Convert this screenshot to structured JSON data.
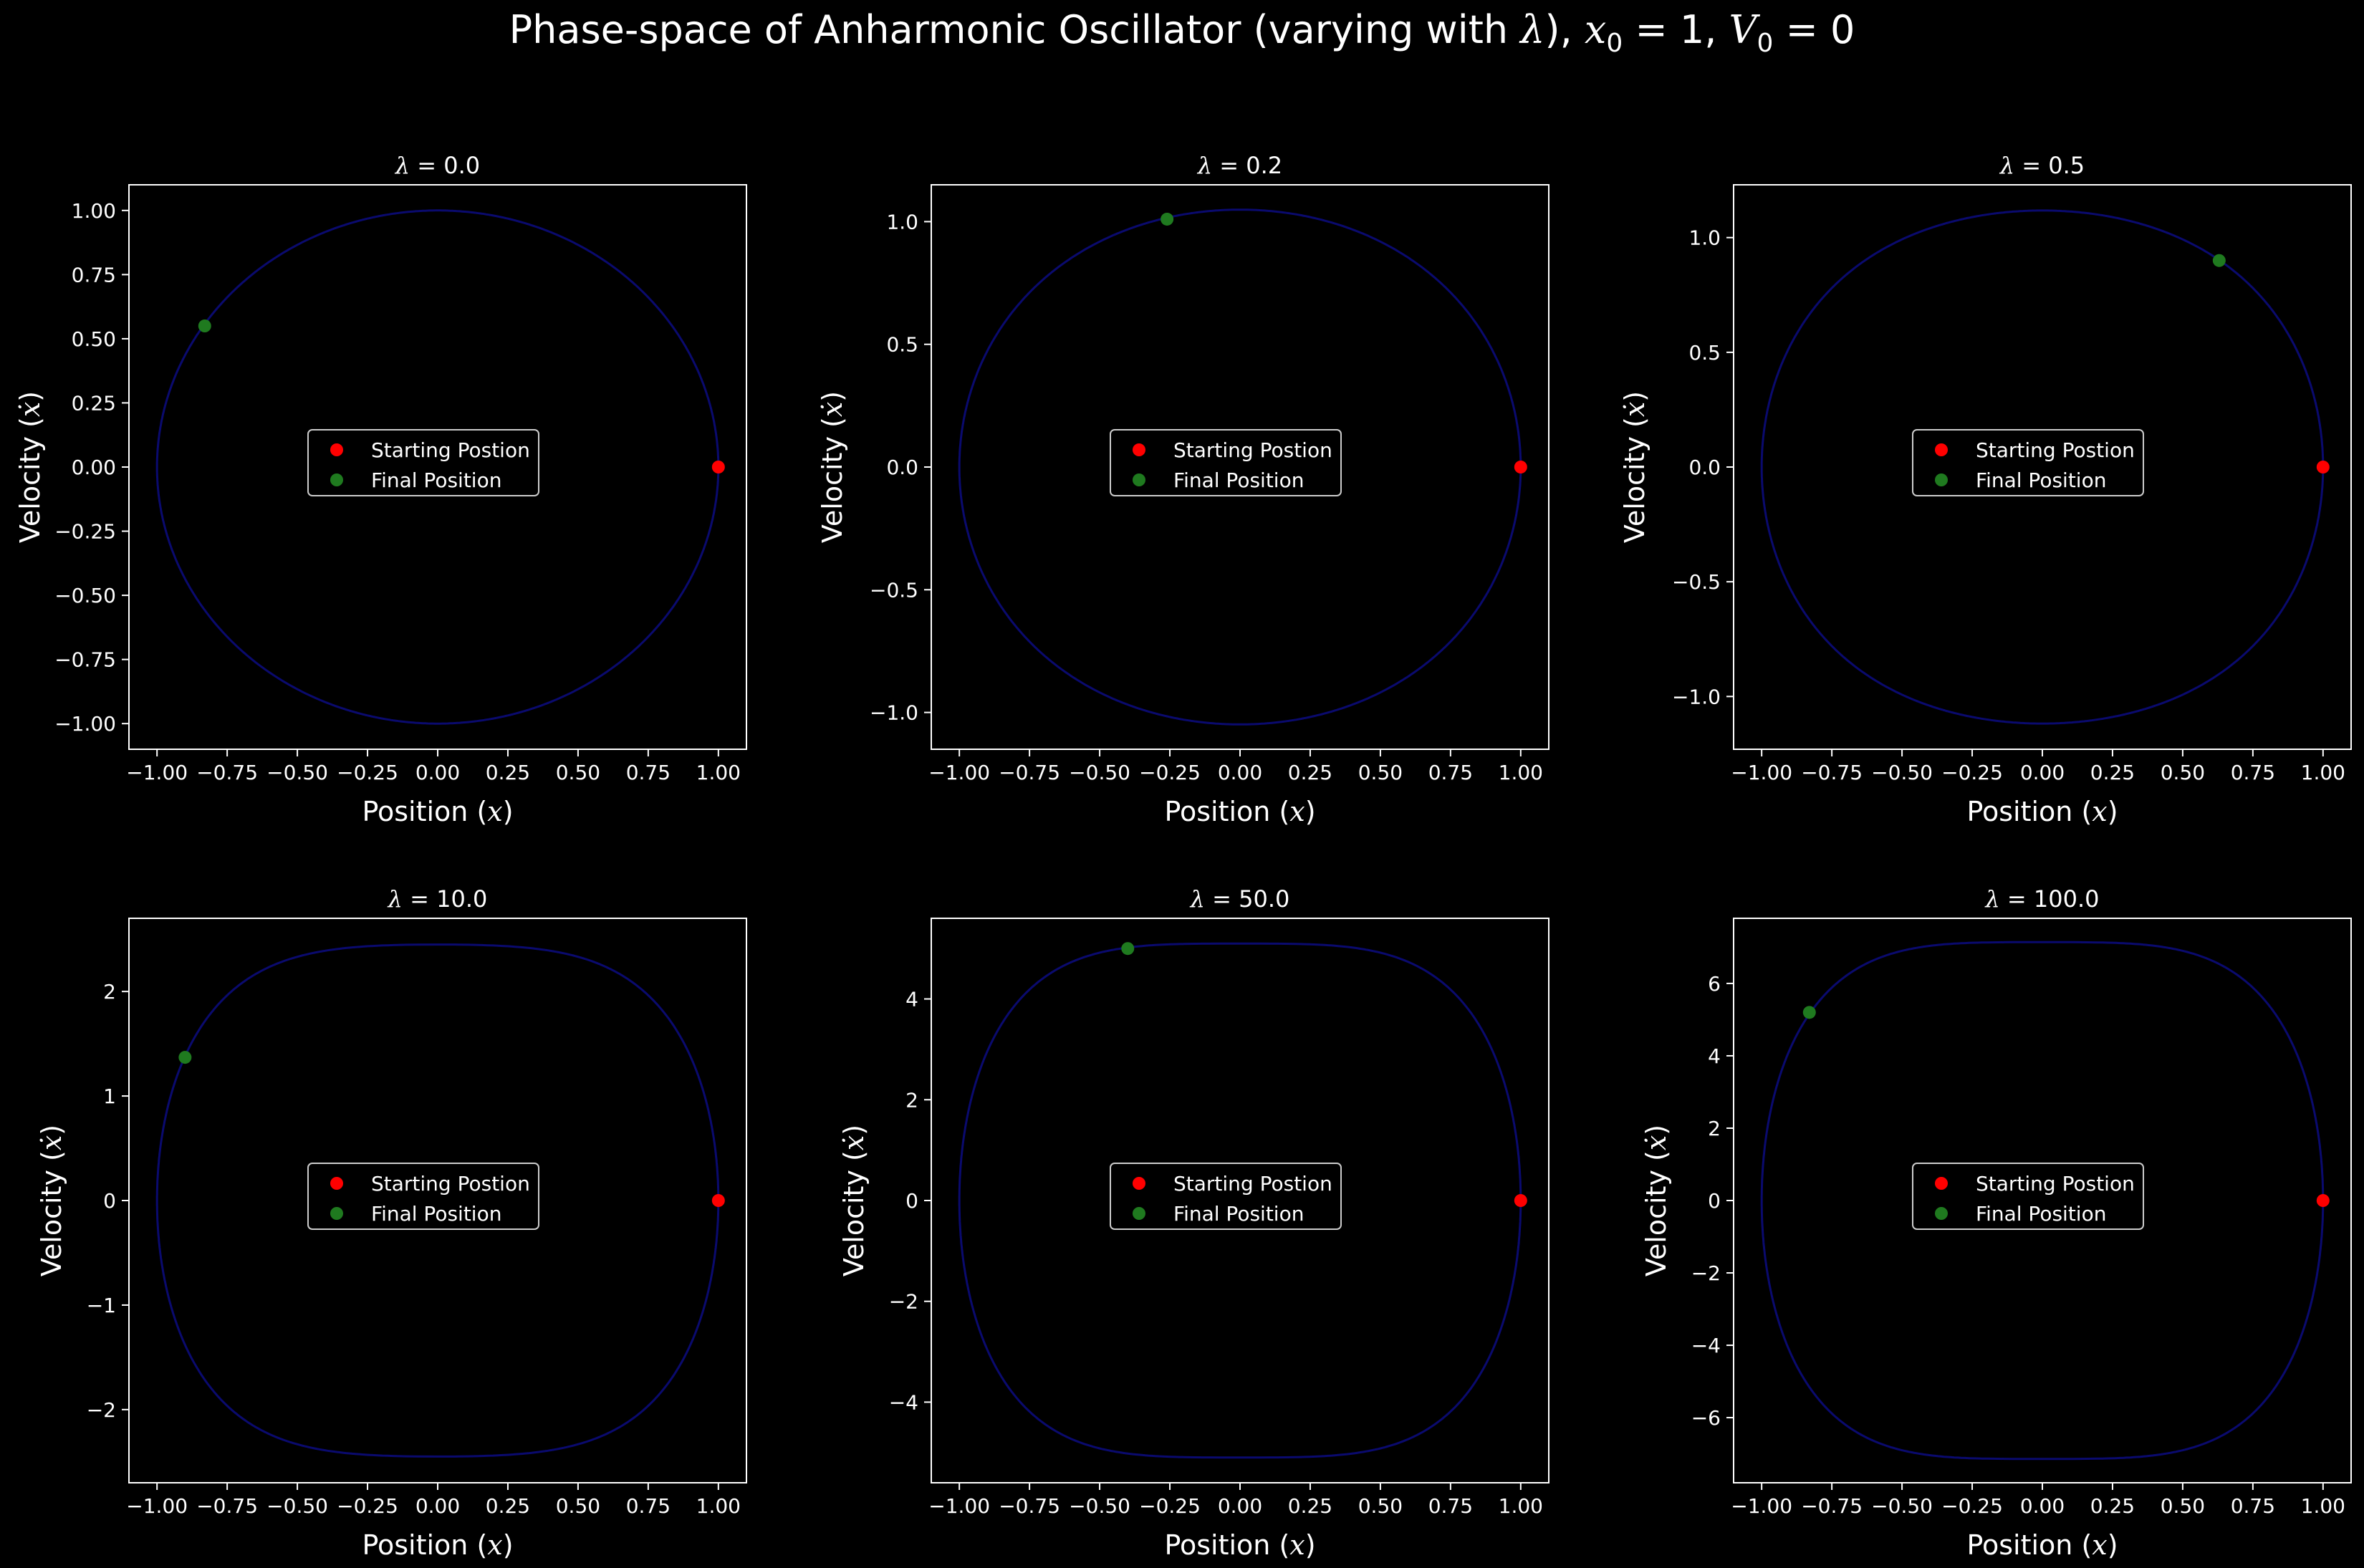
{
  "figure": {
    "title_prefix": "Phase-space of Anharmonic Oscillator (varying with ",
    "title_lambda": "λ",
    "title_mid": "), ",
    "title_x0_var": "x",
    "title_x0_sub": "0",
    "title_x0_val": " = 1,  ",
    "title_v0_var": "V",
    "title_v0_sub": "0",
    "title_v0_val": " = 0",
    "background_color": "#000000",
    "curve_color": "#0a0a6e",
    "start_color": "#ff0000",
    "final_color": "#1f7a1f"
  },
  "chart_data": [
    {
      "type": "line",
      "title": "λ = 0.0",
      "lambda": 0.0,
      "xlabel": "Position (x)",
      "ylabel": "Velocity (ẋ)",
      "xlim": [
        -1.1,
        1.1
      ],
      "ylim": [
        -1.1,
        1.1
      ],
      "xticks": [
        -1.0,
        -0.75,
        -0.5,
        -0.25,
        0.0,
        0.25,
        0.5,
        0.75,
        1.0
      ],
      "xtick_labels": [
        "−1.00",
        "−0.75",
        "−0.50",
        "−0.25",
        "0.00",
        "0.25",
        "0.50",
        "0.75",
        "1.00"
      ],
      "yticks": [
        -1.0,
        -0.75,
        -0.5,
        -0.25,
        0.0,
        0.25,
        0.5,
        0.75,
        1.0
      ],
      "ytick_labels": [
        "−1.00",
        "−0.75",
        "−0.50",
        "−0.25",
        "0.00",
        "0.25",
        "0.50",
        "0.75",
        "1.00"
      ],
      "start": [
        1.0,
        0.0
      ],
      "final": [
        -0.83,
        0.55
      ],
      "legend": [
        "Starting Postion",
        "Final Position"
      ],
      "legend_loc": "center",
      "grid": false
    },
    {
      "type": "line",
      "title": "λ = 0.2",
      "lambda": 0.2,
      "xlabel": "Position (x)",
      "ylabel": "Velocity (ẋ)",
      "xlim": [
        -1.1,
        1.1
      ],
      "ylim": [
        -1.15,
        1.15
      ],
      "xticks": [
        -1.0,
        -0.75,
        -0.5,
        -0.25,
        0.0,
        0.25,
        0.5,
        0.75,
        1.0
      ],
      "xtick_labels": [
        "−1.00",
        "−0.75",
        "−0.50",
        "−0.25",
        "0.00",
        "0.25",
        "0.50",
        "0.75",
        "1.00"
      ],
      "yticks": [
        -1.0,
        -0.5,
        0.0,
        0.5,
        1.0
      ],
      "ytick_labels": [
        "−1.0",
        "−0.5",
        "0.0",
        "0.5",
        "1.0"
      ],
      "start": [
        1.0,
        0.0
      ],
      "final": [
        -0.26,
        1.01
      ],
      "legend": [
        "Starting Postion",
        "Final Position"
      ],
      "legend_loc": "center",
      "grid": false
    },
    {
      "type": "line",
      "title": "λ = 0.5",
      "lambda": 0.5,
      "xlabel": "Position (x)",
      "ylabel": "Velocity (ẋ)",
      "xlim": [
        -1.1,
        1.1
      ],
      "ylim": [
        -1.23,
        1.23
      ],
      "xticks": [
        -1.0,
        -0.75,
        -0.5,
        -0.25,
        0.0,
        0.25,
        0.5,
        0.75,
        1.0
      ],
      "xtick_labels": [
        "−1.00",
        "−0.75",
        "−0.50",
        "−0.25",
        "0.00",
        "0.25",
        "0.50",
        "0.75",
        "1.00"
      ],
      "yticks": [
        -1.0,
        -0.5,
        0.0,
        0.5,
        1.0
      ],
      "ytick_labels": [
        "−1.0",
        "−0.5",
        "0.0",
        "0.5",
        "1.0"
      ],
      "start": [
        1.0,
        0.0
      ],
      "final": [
        0.63,
        0.9
      ],
      "legend": [
        "Starting Postion",
        "Final Position"
      ],
      "legend_loc": "center",
      "grid": false
    },
    {
      "type": "line",
      "title": "λ = 10.0",
      "lambda": 10.0,
      "xlabel": "Position (x)",
      "ylabel": "Velocity (ẋ)",
      "xlim": [
        -1.1,
        1.1
      ],
      "ylim": [
        -2.7,
        2.7
      ],
      "xticks": [
        -1.0,
        -0.75,
        -0.5,
        -0.25,
        0.0,
        0.25,
        0.5,
        0.75,
        1.0
      ],
      "xtick_labels": [
        "−1.00",
        "−0.75",
        "−0.50",
        "−0.25",
        "0.00",
        "0.25",
        "0.50",
        "0.75",
        "1.00"
      ],
      "yticks": [
        -2,
        -1,
        0,
        1,
        2
      ],
      "ytick_labels": [
        "−2",
        "−1",
        "0",
        "1",
        "2"
      ],
      "start": [
        1.0,
        0.0
      ],
      "final": [
        -0.9,
        1.37
      ],
      "legend": [
        "Starting Postion",
        "Final Position"
      ],
      "legend_loc": "center",
      "grid": false
    },
    {
      "type": "line",
      "title": "λ = 50.0",
      "lambda": 50.0,
      "xlabel": "Position (x)",
      "ylabel": "Velocity (ẋ)",
      "xlim": [
        -1.1,
        1.1
      ],
      "ylim": [
        -5.6,
        5.6
      ],
      "xticks": [
        -1.0,
        -0.75,
        -0.5,
        -0.25,
        0.0,
        0.25,
        0.5,
        0.75,
        1.0
      ],
      "xtick_labels": [
        "−1.00",
        "−0.75",
        "−0.50",
        "−0.25",
        "0.00",
        "0.25",
        "0.50",
        "0.75",
        "1.00"
      ],
      "yticks": [
        -4,
        -2,
        0,
        2,
        4
      ],
      "ytick_labels": [
        "−4",
        "−2",
        "0",
        "2",
        "4"
      ],
      "start": [
        1.0,
        0.0
      ],
      "final": [
        -0.4,
        5.0
      ],
      "legend": [
        "Starting Postion",
        "Final Position"
      ],
      "legend_loc": "center",
      "grid": false
    },
    {
      "type": "line",
      "title": "λ = 100.0",
      "lambda": 100.0,
      "xlabel": "Position (x)",
      "ylabel": "Velocity (ẋ)",
      "xlim": [
        -1.1,
        1.1
      ],
      "ylim": [
        -7.8,
        7.8
      ],
      "xticks": [
        -1.0,
        -0.75,
        -0.5,
        -0.25,
        0.0,
        0.25,
        0.5,
        0.75,
        1.0
      ],
      "xtick_labels": [
        "−1.00",
        "−0.75",
        "−0.50",
        "−0.25",
        "0.00",
        "0.25",
        "0.50",
        "0.75",
        "1.00"
      ],
      "yticks": [
        -6,
        -4,
        -2,
        0,
        2,
        4,
        6
      ],
      "ytick_labels": [
        "−6",
        "−4",
        "−2",
        "0",
        "2",
        "4",
        "6"
      ],
      "start": [
        1.0,
        0.0
      ],
      "final": [
        -0.83,
        5.2
      ],
      "legend": [
        "Starting Postion",
        "Final Position"
      ],
      "legend_loc": "center",
      "grid": false
    }
  ]
}
